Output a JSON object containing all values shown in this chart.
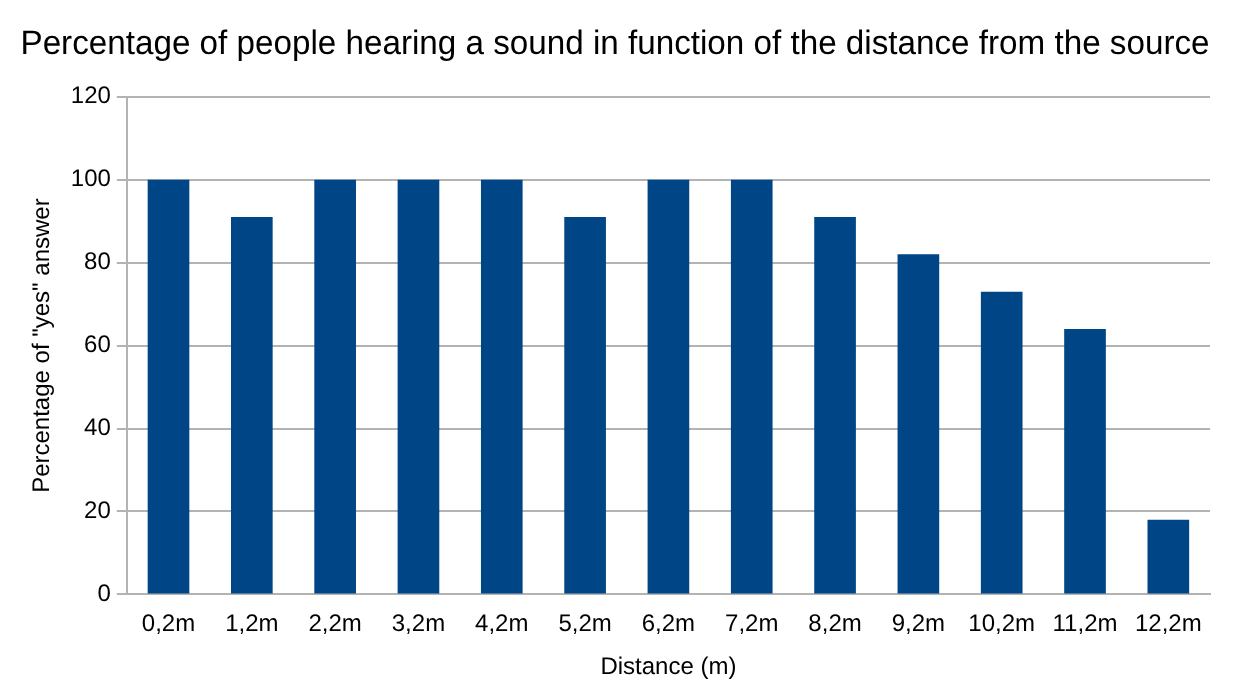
{
  "chart_data": {
    "type": "bar",
    "title": "Percentage of people hearing a sound in function of the distance from the source",
    "xlabel": "Distance (m)",
    "ylabel": "Percentage of \"yes\" answer",
    "categories": [
      "0,2m",
      "1,2m",
      "2,2m",
      "3,2m",
      "4,2m",
      "5,2m",
      "6,2m",
      "7,2m",
      "8,2m",
      "9,2m",
      "10,2m",
      "11,2m",
      "12,2m"
    ],
    "values": [
      100,
      91,
      100,
      100,
      100,
      91,
      100,
      100,
      91,
      82,
      73,
      64,
      18
    ],
    "color": "#004586",
    "ylim": [
      0,
      120
    ],
    "yticks": [
      0,
      20,
      40,
      60,
      80,
      100,
      120
    ],
    "grid": "y",
    "legend": false
  }
}
